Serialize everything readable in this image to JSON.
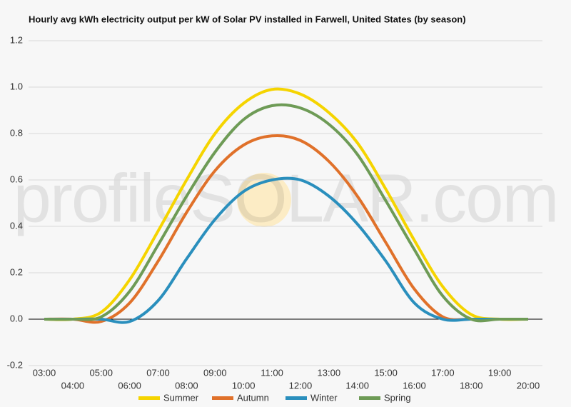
{
  "chart_data": {
    "type": "line",
    "title": "Hourly avg kWh electricity output per kW of Solar PV installed in Farwell, United States (by season)",
    "watermark": "profileSOLAR.com",
    "categories": [
      "03:00",
      "04:00",
      "05:00",
      "06:00",
      "07:00",
      "08:00",
      "09:00",
      "10:00",
      "11:00",
      "12:00",
      "13:00",
      "14:00",
      "15:00",
      "16:00",
      "17:00",
      "18:00",
      "19:00",
      "20:00"
    ],
    "series": [
      {
        "name": "Summer",
        "color": "#f5d400",
        "values": [
          0,
          0,
          0.03,
          0.17,
          0.38,
          0.6,
          0.8,
          0.93,
          0.99,
          0.97,
          0.89,
          0.76,
          0.56,
          0.34,
          0.14,
          0.02,
          0,
          0
        ]
      },
      {
        "name": "Autumn",
        "color": "#e0712a",
        "values": [
          0,
          0,
          -0.01,
          0.07,
          0.25,
          0.46,
          0.64,
          0.75,
          0.79,
          0.77,
          0.68,
          0.53,
          0.33,
          0.13,
          0.01,
          0,
          0,
          0
        ]
      },
      {
        "name": "Winter",
        "color": "#2a8fbd",
        "values": [
          0,
          0,
          0,
          -0.01,
          0.08,
          0.26,
          0.43,
          0.55,
          0.6,
          0.6,
          0.53,
          0.41,
          0.25,
          0.07,
          0,
          0,
          0,
          0
        ]
      },
      {
        "name": "Spring",
        "color": "#6e9b56",
        "values": [
          0,
          0,
          0.01,
          0.12,
          0.32,
          0.53,
          0.72,
          0.86,
          0.92,
          0.91,
          0.84,
          0.71,
          0.51,
          0.3,
          0.1,
          0,
          0,
          0
        ]
      }
    ],
    "ylim": [
      -0.2,
      1.2
    ],
    "yticks": [
      -0.2,
      {
        "value": 0,
        "label": "0.0"
      },
      0.2,
      0.4,
      0.6,
      0.8,
      {
        "value": 1,
        "label": "1.0"
      },
      1.2
    ],
    "grid": true,
    "legend": "bottom"
  }
}
